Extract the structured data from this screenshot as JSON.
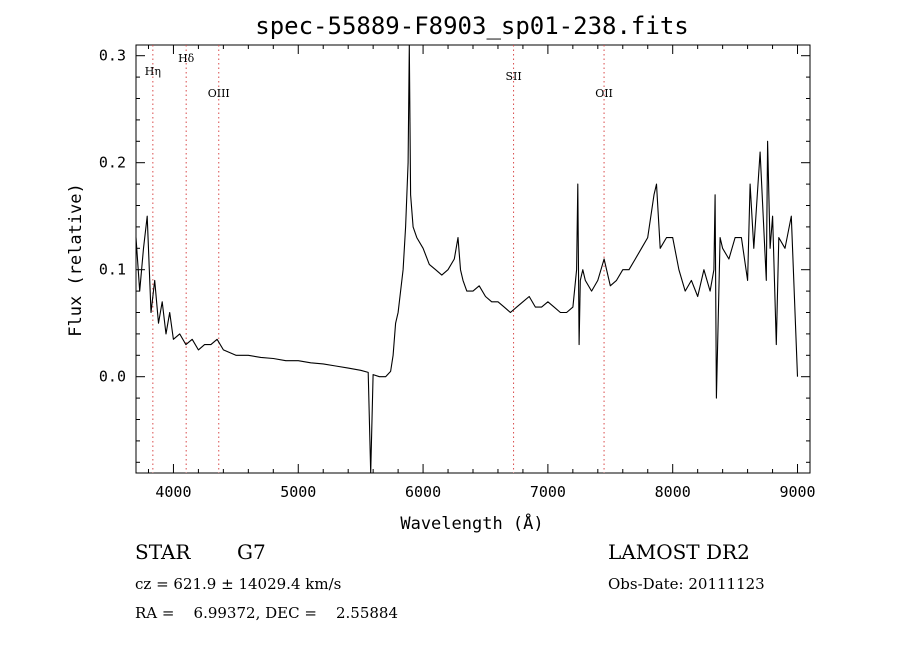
{
  "chart_data": {
    "type": "line",
    "title": "spec-55889-F8903_sp01-238.fits",
    "xlabel": "Wavelength (Å)",
    "ylabel": "Flux (relative)",
    "xlim": [
      3700,
      9100
    ],
    "ylim": [
      -0.09,
      0.31
    ],
    "xticks": [
      4000,
      5000,
      6000,
      7000,
      8000,
      9000
    ],
    "yticks": [
      0.0,
      0.1,
      0.2,
      0.3
    ],
    "ytick_labels": [
      "0.0",
      "0.1",
      "0.2",
      "0.3"
    ],
    "grid": false,
    "series": [
      {
        "x": [
          3700,
          3730,
          3760,
          3790,
          3820,
          3850,
          3880,
          3910,
          3940,
          3970,
          4000,
          4050,
          4100,
          4150,
          4200,
          4250,
          4300,
          4350,
          4400,
          4500,
          4600,
          4700,
          4800,
          4900,
          5000,
          5100,
          5200,
          5300,
          5400,
          5500,
          5560,
          5580,
          5600,
          5650,
          5700,
          5740,
          5760,
          5780,
          5800,
          5820,
          5840,
          5860,
          5880,
          5890,
          5900,
          5920,
          5950,
          6000,
          6050,
          6100,
          6150,
          6200,
          6250,
          6280,
          6300,
          6320,
          6350,
          6400,
          6450,
          6500,
          6550,
          6600,
          6650,
          6700,
          6750,
          6800,
          6850,
          6900,
          6950,
          7000,
          7050,
          7100,
          7150,
          7200,
          7230,
          7240,
          7250,
          7260,
          7280,
          7300,
          7350,
          7400,
          7450,
          7500,
          7550,
          7600,
          7650,
          7700,
          7750,
          7800,
          7850,
          7870,
          7900,
          7950,
          8000,
          8050,
          8100,
          8150,
          8200,
          8250,
          8300,
          8330,
          8340,
          8350,
          8380,
          8400,
          8450,
          8500,
          8550,
          8600,
          8620,
          8650,
          8700,
          8750,
          8760,
          8780,
          8800,
          8830,
          8850,
          8900,
          8950,
          9000
        ],
        "y": [
          0.13,
          0.08,
          0.12,
          0.15,
          0.06,
          0.09,
          0.05,
          0.07,
          0.04,
          0.06,
          0.035,
          0.04,
          0.03,
          0.035,
          0.025,
          0.03,
          0.03,
          0.035,
          0.025,
          0.02,
          0.02,
          0.018,
          0.017,
          0.015,
          0.015,
          0.013,
          0.012,
          0.01,
          0.008,
          0.006,
          0.004,
          -0.09,
          0.002,
          0.0,
          0.0,
          0.005,
          0.02,
          0.05,
          0.06,
          0.08,
          0.1,
          0.14,
          0.2,
          0.31,
          0.17,
          0.14,
          0.13,
          0.12,
          0.105,
          0.1,
          0.095,
          0.1,
          0.11,
          0.13,
          0.1,
          0.09,
          0.08,
          0.08,
          0.085,
          0.075,
          0.07,
          0.07,
          0.065,
          0.06,
          0.065,
          0.07,
          0.075,
          0.065,
          0.065,
          0.07,
          0.065,
          0.06,
          0.06,
          0.065,
          0.1,
          0.18,
          0.03,
          0.09,
          0.1,
          0.09,
          0.08,
          0.09,
          0.11,
          0.085,
          0.09,
          0.1,
          0.1,
          0.11,
          0.12,
          0.13,
          0.17,
          0.18,
          0.12,
          0.13,
          0.13,
          0.1,
          0.08,
          0.09,
          0.075,
          0.1,
          0.08,
          0.1,
          0.17,
          -0.02,
          0.13,
          0.12,
          0.11,
          0.13,
          0.13,
          0.09,
          0.18,
          0.12,
          0.21,
          0.09,
          0.22,
          0.12,
          0.15,
          0.03,
          0.13,
          0.12,
          0.15,
          0.0
        ]
      }
    ],
    "lines": [
      {
        "label": "Hη",
        "x": 3835
      },
      {
        "label": "Hδ",
        "x": 4102
      },
      {
        "label": "OIII",
        "x": 4363
      },
      {
        "label": "SII",
        "x": 6725
      },
      {
        "label": "OII",
        "x": 7450
      }
    ]
  },
  "info": {
    "object_type": "STAR",
    "subclass": "G7",
    "survey": "LAMOST DR2",
    "cz": "cz = 621.9 ± 14029.4 km/s",
    "obs_date": "Obs-Date: 20111123",
    "coords": "RA =    6.99372, DEC =    2.55884"
  },
  "colors": {
    "axes": "#000000",
    "spectrum": "#000000",
    "line_markers": "#d94a4a"
  }
}
